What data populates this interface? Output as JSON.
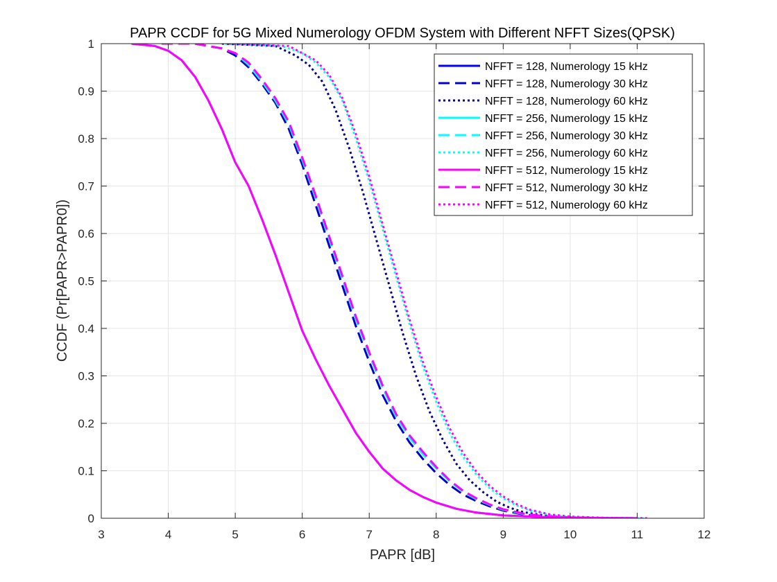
{
  "chart_data": {
    "type": "line",
    "title": "PAPR CCDF for 5G Mixed Numerology OFDM System with Different NFFT Sizes(QPSK)",
    "xlabel": "PAPR [dB]",
    "ylabel": "CCDF (Pr[PAPR>PAPR0])",
    "xlim": [
      3,
      12
    ],
    "ylim": [
      0,
      1
    ],
    "xticks": [
      "3",
      "4",
      "5",
      "6",
      "7",
      "8",
      "9",
      "10",
      "11",
      "12"
    ],
    "yticks": [
      "0",
      "0.1",
      "0.2",
      "0.3",
      "0.4",
      "0.5",
      "0.6",
      "0.7",
      "0.8",
      "0.9",
      "1"
    ],
    "grid": true,
    "legend_position": "top-right",
    "series": [
      {
        "name": "NFFT = 128, Numerology 15 kHz",
        "color": "#0000ff",
        "style": "solid",
        "points": [
          [
            3.45,
            1.0
          ],
          [
            3.8,
            0.995
          ],
          [
            4.0,
            0.985
          ],
          [
            4.2,
            0.965
          ],
          [
            4.4,
            0.93
          ],
          [
            4.6,
            0.88
          ],
          [
            4.8,
            0.82
          ],
          [
            5.0,
            0.75
          ],
          [
            5.2,
            0.7
          ],
          [
            5.4,
            0.63
          ],
          [
            5.6,
            0.555
          ],
          [
            5.8,
            0.475
          ],
          [
            6.0,
            0.395
          ],
          [
            6.2,
            0.335
          ],
          [
            6.4,
            0.28
          ],
          [
            6.6,
            0.23
          ],
          [
            6.8,
            0.18
          ],
          [
            7.0,
            0.14
          ],
          [
            7.2,
            0.105
          ],
          [
            7.4,
            0.08
          ],
          [
            7.6,
            0.06
          ],
          [
            7.8,
            0.045
          ],
          [
            8.0,
            0.033
          ],
          [
            8.3,
            0.02
          ],
          [
            8.6,
            0.012
          ],
          [
            9.0,
            0.006
          ],
          [
            9.5,
            0.003
          ],
          [
            10.0,
            0.0015
          ],
          [
            10.5,
            0.0005
          ],
          [
            11.0,
            0.0
          ]
        ]
      },
      {
        "name": "NFFT = 128, Numerology 30 kHz",
        "color": "#0000cd",
        "style": "dashed",
        "points": [
          [
            3.9,
            1.0
          ],
          [
            4.4,
            1.0
          ],
          [
            4.8,
            0.99
          ],
          [
            5.0,
            0.975
          ],
          [
            5.2,
            0.95
          ],
          [
            5.4,
            0.915
          ],
          [
            5.6,
            0.875
          ],
          [
            5.8,
            0.82
          ],
          [
            6.0,
            0.745
          ],
          [
            6.2,
            0.66
          ],
          [
            6.4,
            0.575
          ],
          [
            6.6,
            0.49
          ],
          [
            6.8,
            0.405
          ],
          [
            7.0,
            0.33
          ],
          [
            7.2,
            0.26
          ],
          [
            7.4,
            0.205
          ],
          [
            7.6,
            0.16
          ],
          [
            7.8,
            0.125
          ],
          [
            8.0,
            0.095
          ],
          [
            8.2,
            0.07
          ],
          [
            8.4,
            0.05
          ],
          [
            8.6,
            0.036
          ],
          [
            8.8,
            0.025
          ],
          [
            9.0,
            0.016
          ],
          [
            9.3,
            0.008
          ],
          [
            9.6,
            0.004
          ],
          [
            10.0,
            0.0015
          ],
          [
            10.5,
            0.0005
          ],
          [
            11.0,
            0.0
          ]
        ]
      },
      {
        "name": "NFFT = 128, Numerology 60 kHz",
        "color": "#00008b",
        "style": "dotted",
        "points": [
          [
            4.8,
            1.0
          ],
          [
            5.6,
            0.995
          ],
          [
            5.9,
            0.975
          ],
          [
            6.1,
            0.955
          ],
          [
            6.3,
            0.92
          ],
          [
            6.5,
            0.86
          ],
          [
            6.7,
            0.78
          ],
          [
            6.9,
            0.69
          ],
          [
            7.1,
            0.59
          ],
          [
            7.3,
            0.49
          ],
          [
            7.5,
            0.39
          ],
          [
            7.7,
            0.3
          ],
          [
            7.9,
            0.225
          ],
          [
            8.1,
            0.165
          ],
          [
            8.3,
            0.115
          ],
          [
            8.5,
            0.08
          ],
          [
            8.7,
            0.055
          ],
          [
            8.9,
            0.035
          ],
          [
            9.1,
            0.022
          ],
          [
            9.3,
            0.013
          ],
          [
            9.6,
            0.006
          ],
          [
            10.0,
            0.002
          ],
          [
            10.5,
            0.0005
          ],
          [
            11.0,
            0.0
          ]
        ]
      },
      {
        "name": "NFFT = 256, Numerology 15 kHz",
        "color": "#00ffff",
        "style": "solid",
        "points": [
          [
            3.45,
            1.0
          ],
          [
            3.8,
            0.995
          ],
          [
            4.0,
            0.985
          ],
          [
            4.2,
            0.965
          ],
          [
            4.4,
            0.93
          ],
          [
            4.6,
            0.88
          ],
          [
            4.8,
            0.82
          ],
          [
            5.0,
            0.75
          ],
          [
            5.2,
            0.7
          ],
          [
            5.4,
            0.63
          ],
          [
            5.6,
            0.555
          ],
          [
            5.8,
            0.475
          ],
          [
            6.0,
            0.395
          ],
          [
            6.2,
            0.335
          ],
          [
            6.4,
            0.28
          ],
          [
            6.6,
            0.23
          ],
          [
            6.8,
            0.18
          ],
          [
            7.0,
            0.14
          ],
          [
            7.2,
            0.105
          ],
          [
            7.4,
            0.08
          ],
          [
            7.6,
            0.06
          ],
          [
            7.8,
            0.045
          ],
          [
            8.0,
            0.033
          ],
          [
            8.3,
            0.02
          ],
          [
            8.6,
            0.012
          ],
          [
            9.0,
            0.006
          ],
          [
            9.5,
            0.003
          ],
          [
            10.0,
            0.0015
          ],
          [
            10.5,
            0.0005
          ],
          [
            11.0,
            0.0
          ]
        ]
      },
      {
        "name": "NFFT = 256, Numerology 30 kHz",
        "color": "#00ffff",
        "style": "dashed",
        "points": [
          [
            3.9,
            1.0
          ],
          [
            4.4,
            1.0
          ],
          [
            4.8,
            0.99
          ],
          [
            5.0,
            0.98
          ],
          [
            5.2,
            0.955
          ],
          [
            5.4,
            0.92
          ],
          [
            5.6,
            0.88
          ],
          [
            5.8,
            0.83
          ],
          [
            6.0,
            0.755
          ],
          [
            6.2,
            0.675
          ],
          [
            6.4,
            0.59
          ],
          [
            6.6,
            0.505
          ],
          [
            6.8,
            0.42
          ],
          [
            7.0,
            0.345
          ],
          [
            7.2,
            0.275
          ],
          [
            7.4,
            0.215
          ],
          [
            7.6,
            0.17
          ],
          [
            7.8,
            0.135
          ],
          [
            8.0,
            0.105
          ],
          [
            8.2,
            0.078
          ],
          [
            8.4,
            0.056
          ],
          [
            8.6,
            0.04
          ],
          [
            8.8,
            0.028
          ],
          [
            9.0,
            0.018
          ],
          [
            9.3,
            0.009
          ],
          [
            9.6,
            0.004
          ],
          [
            10.0,
            0.0015
          ],
          [
            10.5,
            0.0005
          ],
          [
            11.0,
            0.0
          ]
        ]
      },
      {
        "name": "NFFT = 256, Numerology 60 kHz",
        "color": "#00ffff",
        "style": "dotted",
        "points": [
          [
            4.85,
            1.0
          ],
          [
            5.7,
            0.995
          ],
          [
            6.0,
            0.98
          ],
          [
            6.2,
            0.96
          ],
          [
            6.4,
            0.93
          ],
          [
            6.6,
            0.88
          ],
          [
            6.8,
            0.8
          ],
          [
            7.0,
            0.71
          ],
          [
            7.2,
            0.61
          ],
          [
            7.4,
            0.51
          ],
          [
            7.6,
            0.41
          ],
          [
            7.8,
            0.32
          ],
          [
            8.0,
            0.245
          ],
          [
            8.2,
            0.18
          ],
          [
            8.4,
            0.13
          ],
          [
            8.6,
            0.092
          ],
          [
            8.8,
            0.063
          ],
          [
            9.0,
            0.042
          ],
          [
            9.2,
            0.027
          ],
          [
            9.4,
            0.016
          ],
          [
            9.7,
            0.007
          ],
          [
            10.0,
            0.003
          ],
          [
            10.5,
            0.0008
          ],
          [
            11.1,
            0.0
          ]
        ]
      },
      {
        "name": "NFFT = 512, Numerology 15 kHz",
        "color": "#ff00ff",
        "style": "solid",
        "points": [
          [
            3.45,
            1.0
          ],
          [
            3.8,
            0.995
          ],
          [
            4.0,
            0.985
          ],
          [
            4.2,
            0.965
          ],
          [
            4.4,
            0.93
          ],
          [
            4.6,
            0.88
          ],
          [
            4.8,
            0.82
          ],
          [
            5.0,
            0.75
          ],
          [
            5.2,
            0.7
          ],
          [
            5.4,
            0.63
          ],
          [
            5.6,
            0.555
          ],
          [
            5.8,
            0.475
          ],
          [
            6.0,
            0.395
          ],
          [
            6.2,
            0.335
          ],
          [
            6.4,
            0.28
          ],
          [
            6.6,
            0.23
          ],
          [
            6.8,
            0.18
          ],
          [
            7.0,
            0.14
          ],
          [
            7.2,
            0.105
          ],
          [
            7.4,
            0.08
          ],
          [
            7.6,
            0.06
          ],
          [
            7.8,
            0.045
          ],
          [
            8.0,
            0.033
          ],
          [
            8.3,
            0.02
          ],
          [
            8.6,
            0.012
          ],
          [
            9.0,
            0.006
          ],
          [
            9.5,
            0.003
          ],
          [
            10.0,
            0.0015
          ],
          [
            10.5,
            0.0005
          ],
          [
            11.0,
            0.0
          ]
        ]
      },
      {
        "name": "NFFT = 512, Numerology 30 kHz",
        "color": "#ff00ff",
        "style": "dashed",
        "points": [
          [
            3.9,
            1.0
          ],
          [
            4.4,
            1.0
          ],
          [
            4.8,
            0.99
          ],
          [
            5.0,
            0.98
          ],
          [
            5.2,
            0.96
          ],
          [
            5.4,
            0.925
          ],
          [
            5.6,
            0.885
          ],
          [
            5.8,
            0.835
          ],
          [
            6.0,
            0.76
          ],
          [
            6.2,
            0.68
          ],
          [
            6.4,
            0.595
          ],
          [
            6.6,
            0.51
          ],
          [
            6.8,
            0.425
          ],
          [
            7.0,
            0.35
          ],
          [
            7.2,
            0.28
          ],
          [
            7.4,
            0.22
          ],
          [
            7.6,
            0.175
          ],
          [
            7.8,
            0.14
          ],
          [
            8.0,
            0.108
          ],
          [
            8.2,
            0.08
          ],
          [
            8.4,
            0.058
          ],
          [
            8.6,
            0.042
          ],
          [
            8.8,
            0.029
          ],
          [
            9.0,
            0.019
          ],
          [
            9.3,
            0.01
          ],
          [
            9.6,
            0.0045
          ],
          [
            10.0,
            0.0015
          ],
          [
            10.5,
            0.0005
          ],
          [
            11.0,
            0.0
          ]
        ]
      },
      {
        "name": "NFFT = 512, Numerology 60 kHz",
        "color": "#ff00ff",
        "style": "dotted",
        "points": [
          [
            4.9,
            1.0
          ],
          [
            5.8,
            0.995
          ],
          [
            6.0,
            0.98
          ],
          [
            6.2,
            0.965
          ],
          [
            6.4,
            0.935
          ],
          [
            6.6,
            0.885
          ],
          [
            6.8,
            0.81
          ],
          [
            7.0,
            0.72
          ],
          [
            7.2,
            0.62
          ],
          [
            7.4,
            0.52
          ],
          [
            7.6,
            0.42
          ],
          [
            7.8,
            0.33
          ],
          [
            8.0,
            0.255
          ],
          [
            8.2,
            0.19
          ],
          [
            8.4,
            0.138
          ],
          [
            8.6,
            0.098
          ],
          [
            8.8,
            0.068
          ],
          [
            9.0,
            0.046
          ],
          [
            9.2,
            0.03
          ],
          [
            9.4,
            0.018
          ],
          [
            9.7,
            0.008
          ],
          [
            10.0,
            0.0035
          ],
          [
            10.5,
            0.001
          ],
          [
            11.15,
            0.0
          ]
        ]
      }
    ]
  }
}
